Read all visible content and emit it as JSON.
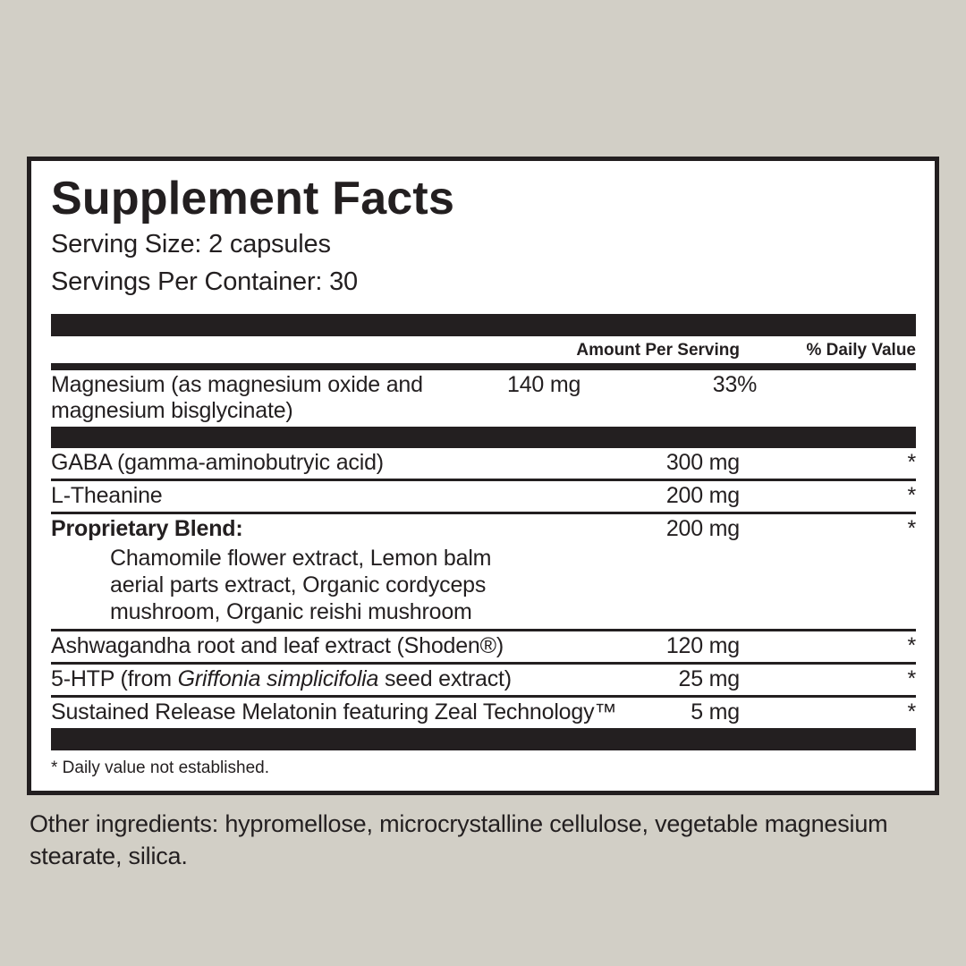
{
  "colors": {
    "background": "#d2cfc6",
    "panel": "#ffffff",
    "ink": "#231f20"
  },
  "supplement": {
    "title": "Supplement Facts",
    "serving_size": "Serving Size: 2 capsules",
    "servings_per_container": "Servings Per Container: 30",
    "columns": {
      "amount": "Amount Per Serving",
      "daily_value": "% Daily Value"
    },
    "rows": [
      {
        "name": "Magnesium (as magnesium oxide and magnesium bisglycinate)",
        "amount": "140 mg",
        "daily_value": "33%"
      },
      {
        "name": "GABA (gamma-aminobutryic acid)",
        "amount": "300 mg",
        "daily_value": "*"
      },
      {
        "name": "L-Theanine",
        "amount": "200 mg",
        "daily_value": "*"
      },
      {
        "name": "Proprietary Blend:",
        "amount": "200 mg",
        "daily_value": "*",
        "sub_ingredients": [
          "Chamomile flower extract, Lemon balm",
          "aerial parts extract, Organic cordyceps",
          "mushroom, Organic reishi mushroom"
        ]
      },
      {
        "name": "Ashwagandha root and leaf extract (Shoden®)",
        "amount": "120 mg",
        "daily_value": "*"
      },
      {
        "name_parts": {
          "pre": "5-HTP (from ",
          "italic": "Griffonia simplicifolia",
          "post": " seed extract)"
        },
        "amount": "25 mg",
        "daily_value": "*"
      },
      {
        "name": "Sustained Release Melatonin featuring Zeal Technology™",
        "amount": "5 mg",
        "daily_value": "*"
      }
    ],
    "footnote": "* Daily value not established."
  },
  "other_ingredients": "Other ingredients: hypromellose, microcrystalline cellulose, vegetable magnesium stearate, silica."
}
